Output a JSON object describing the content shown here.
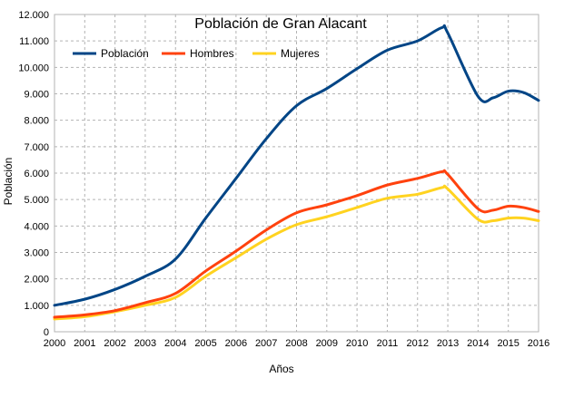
{
  "chart_data": {
    "type": "line",
    "title": "Población de Gran Alacant",
    "xlabel": "Años",
    "ylabel": "Población",
    "x": [
      2000,
      2001,
      2002,
      2003,
      2004,
      2005,
      2006,
      2007,
      2008,
      2009,
      2010,
      2011,
      2012,
      2012.8,
      2013,
      2014,
      2014.5,
      2015,
      2015.5,
      2016
    ],
    "xlim": [
      2000,
      2016
    ],
    "ylim": [
      0,
      12000
    ],
    "grid": true,
    "legend_position": "top-left",
    "x_ticks": [
      "2000",
      "2001",
      "2002",
      "2003",
      "2004",
      "2005",
      "2006",
      "2007",
      "2008",
      "2009",
      "2010",
      "2011",
      "2012",
      "2013",
      "2014",
      "2015",
      "2016"
    ],
    "y_ticks": [
      "0",
      "1.000",
      "2.000",
      "3.000",
      "4.000",
      "5.000",
      "6.000",
      "7.000",
      "8.000",
      "9.000",
      "10.000",
      "11.000",
      "12.000"
    ],
    "series": [
      {
        "name": "Población",
        "color": "#004586",
        "values": [
          1000,
          1230,
          1600,
          2100,
          2750,
          4300,
          5800,
          7300,
          8550,
          9200,
          9950,
          10650,
          11000,
          11500,
          11300,
          8900,
          8850,
          9100,
          9050,
          8750
        ]
      },
      {
        "name": "Hombres",
        "color": "#ff420e",
        "values": [
          550,
          640,
          800,
          1100,
          1450,
          2300,
          3050,
          3850,
          4500,
          4800,
          5150,
          5550,
          5800,
          6050,
          5950,
          4650,
          4600,
          4750,
          4700,
          4550
        ]
      },
      {
        "name": "Mujeres",
        "color": "#ffd320",
        "values": [
          480,
          570,
          760,
          1000,
          1300,
          2100,
          2800,
          3500,
          4050,
          4350,
          4700,
          5050,
          5200,
          5450,
          5400,
          4250,
          4200,
          4300,
          4300,
          4200
        ]
      }
    ]
  }
}
